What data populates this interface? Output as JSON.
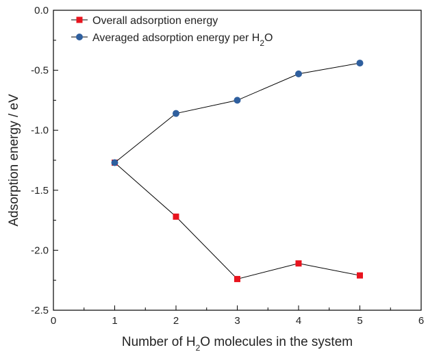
{
  "chart_data": {
    "type": "line",
    "xlabel": {
      "pre": "Number of H",
      "sub": "2",
      "post": "O molecules in the system"
    },
    "ylabel": "Adsorption energy / eV",
    "xlim": [
      0,
      6
    ],
    "ylim": [
      -2.5,
      0.0
    ],
    "xticks": [
      "0",
      "1",
      "2",
      "3",
      "4",
      "5",
      "6"
    ],
    "yticks": [
      "0.0",
      "-0.5",
      "-1.0",
      "-1.5",
      "-2.0",
      "-2.5"
    ],
    "legend_position": "top-left",
    "series": [
      {
        "name": "Overall adsorption energy",
        "legend": {
          "pre": "Overall adsorption energy",
          "sub": "",
          "post": ""
        },
        "marker": "square",
        "color": "#e8141e",
        "x": [
          1,
          2,
          3,
          4,
          5
        ],
        "y": [
          -1.27,
          -1.72,
          -2.24,
          -2.11,
          -2.21
        ]
      },
      {
        "name": "Averaged adsorption energy per H2O",
        "legend": {
          "pre": "Averaged adsorption energy per H",
          "sub": "2",
          "post": "O"
        },
        "marker": "circle",
        "color": "#2f5f9e",
        "x": [
          1,
          2,
          3,
          4,
          5
        ],
        "y": [
          -1.27,
          -0.86,
          -0.75,
          -0.53,
          -0.44
        ]
      }
    ]
  }
}
